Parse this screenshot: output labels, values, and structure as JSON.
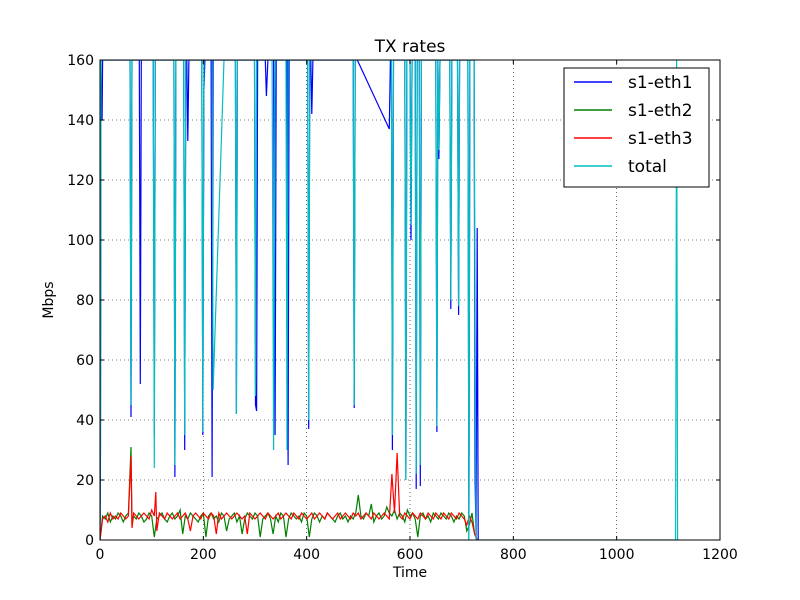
{
  "chart_data": {
    "type": "line",
    "title": "TX rates",
    "xlabel": "Time",
    "ylabel": "Mbps",
    "xlim": [
      0,
      1200
    ],
    "ylim": [
      0,
      160
    ],
    "xticks": [
      0,
      200,
      400,
      600,
      800,
      1000,
      1200
    ],
    "yticks": [
      0,
      20,
      40,
      60,
      80,
      100,
      120,
      140,
      160
    ],
    "grid": true,
    "legend_position": "top-right",
    "series": [
      {
        "name": "s1-eth1",
        "color": "#0000ff",
        "x": [
          0,
          1,
          2,
          3,
          4,
          5,
          6,
          8,
          10,
          58,
          60,
          62,
          64,
          74,
          76,
          78,
          80,
          103,
          105,
          107,
          110,
          113,
          143,
          145,
          147,
          150,
          152,
          160,
          162,
          164,
          166,
          168,
          170,
          172,
          197,
          199,
          201,
          203,
          205,
          207,
          215,
          217,
          219,
          222,
          225,
          240,
          242,
          244,
          246,
          260,
          262,
          264,
          266,
          268,
          272,
          274,
          276,
          278,
          280,
          297,
          299,
          301,
          303,
          305,
          310,
          312,
          314,
          316,
          320,
          322,
          325,
          327,
          330,
          333,
          336,
          339,
          341,
          343,
          345,
          347,
          360,
          362,
          364,
          366,
          378,
          380,
          383,
          386,
          389,
          402,
          404,
          406,
          408,
          410,
          412,
          490,
          492,
          494,
          496,
          498,
          560,
          562,
          564,
          566,
          568,
          570,
          572,
          574,
          576,
          590,
          592,
          594,
          596,
          598,
          600,
          602,
          604,
          606,
          608,
          610,
          612,
          614,
          616,
          618,
          620,
          622,
          624,
          626,
          628,
          630,
          650,
          652,
          654,
          656,
          658,
          675,
          677,
          679,
          681,
          683,
          690,
          692,
          694,
          696,
          698,
          700,
          702,
          704,
          712,
          714,
          716,
          718,
          720,
          722,
          724,
          726,
          728,
          730,
          732,
          733
        ],
        "y": [
          0,
          31,
          160,
          140,
          140,
          160,
          160,
          160,
          160,
          160,
          41,
          160,
          160,
          160,
          160,
          52,
          160,
          160,
          35,
          160,
          160,
          160,
          160,
          21,
          160,
          160,
          160,
          160,
          160,
          30,
          160,
          160,
          133,
          160,
          160,
          35,
          150,
          160,
          160,
          160,
          160,
          21,
          160,
          160,
          160,
          160,
          160,
          160,
          160,
          160,
          160,
          42,
          160,
          160,
          160,
          160,
          160,
          160,
          160,
          160,
          160,
          45,
          43,
          160,
          160,
          160,
          160,
          160,
          160,
          148,
          160,
          160,
          160,
          160,
          160,
          35,
          160,
          160,
          160,
          160,
          160,
          160,
          25,
          160,
          160,
          160,
          160,
          160,
          160,
          160,
          37,
          160,
          160,
          142,
          160,
          160,
          44,
          160,
          160,
          160,
          137,
          160,
          160,
          30,
          160,
          160,
          160,
          160,
          160,
          160,
          20,
          160,
          160,
          160,
          160,
          100,
          160,
          160,
          160,
          160,
          17,
          160,
          160,
          160,
          18,
          160,
          160,
          160,
          160,
          160,
          160,
          36,
          160,
          127,
          160,
          160,
          160,
          77,
          160,
          160,
          160,
          160,
          75,
          160,
          160,
          160,
          160,
          160,
          160,
          0,
          160,
          160,
          160,
          160,
          160,
          20,
          0,
          104,
          0,
          0
        ]
      },
      {
        "name": "s1-eth2",
        "color": "#008000",
        "x": [
          0,
          5,
          10,
          15,
          20,
          25,
          30,
          35,
          40,
          45,
          50,
          55,
          60,
          62,
          65,
          70,
          75,
          80,
          85,
          90,
          95,
          100,
          105,
          110,
          115,
          120,
          125,
          130,
          135,
          140,
          145,
          150,
          155,
          160,
          165,
          170,
          175,
          180,
          185,
          190,
          195,
          200,
          205,
          210,
          215,
          220,
          225,
          230,
          235,
          240,
          245,
          250,
          255,
          260,
          265,
          270,
          275,
          280,
          285,
          290,
          295,
          300,
          305,
          310,
          315,
          320,
          325,
          330,
          335,
          340,
          345,
          350,
          355,
          360,
          365,
          370,
          375,
          380,
          385,
          390,
          395,
          400,
          405,
          410,
          415,
          420,
          425,
          430,
          435,
          440,
          445,
          450,
          455,
          460,
          465,
          470,
          475,
          480,
          485,
          490,
          495,
          500,
          505,
          510,
          515,
          520,
          525,
          530,
          535,
          540,
          545,
          550,
          555,
          560,
          565,
          570,
          575,
          580,
          585,
          590,
          595,
          600,
          605,
          610,
          615,
          620,
          625,
          630,
          635,
          640,
          645,
          650,
          655,
          660,
          665,
          670,
          675,
          680,
          685,
          690,
          695,
          700,
          705,
          710,
          715,
          720,
          725,
          730
        ],
        "y": [
          0,
          8,
          7,
          9,
          6,
          8,
          7,
          9,
          8,
          6,
          8,
          9,
          31,
          5,
          8,
          7,
          9,
          8,
          6,
          7,
          9,
          8,
          1,
          7,
          8,
          9,
          7,
          6,
          8,
          9,
          7,
          8,
          10,
          2,
          8,
          7,
          9,
          8,
          7,
          6,
          8,
          9,
          1,
          8,
          9,
          7,
          8,
          6,
          9,
          8,
          3,
          7,
          8,
          9,
          6,
          8,
          2,
          7,
          9,
          8,
          7,
          9,
          8,
          1,
          7,
          8,
          9,
          7,
          2,
          8,
          6,
          9,
          8,
          1,
          7,
          9,
          8,
          7,
          8,
          6,
          9,
          8,
          1,
          7,
          9,
          8,
          6,
          8,
          7,
          9,
          8,
          7,
          6,
          8,
          9,
          7,
          8,
          6,
          8,
          7,
          9,
          15,
          8,
          7,
          9,
          8,
          12,
          6,
          8,
          9,
          7,
          8,
          11,
          9,
          8,
          10,
          7,
          9,
          8,
          6,
          10,
          8,
          9,
          7,
          1,
          8,
          9,
          7,
          8,
          6,
          9,
          8,
          7,
          9,
          8,
          7,
          9,
          8,
          6,
          8,
          7,
          9,
          8,
          3,
          5,
          9,
          2,
          0
        ]
      },
      {
        "name": "s1-eth3",
        "color": "#ff0000",
        "x": [
          0,
          5,
          10,
          15,
          20,
          25,
          30,
          35,
          40,
          45,
          50,
          55,
          60,
          62,
          65,
          70,
          75,
          80,
          85,
          90,
          95,
          100,
          105,
          108,
          110,
          115,
          120,
          125,
          130,
          135,
          140,
          145,
          150,
          155,
          160,
          165,
          170,
          175,
          180,
          185,
          190,
          195,
          200,
          205,
          210,
          215,
          220,
          225,
          230,
          235,
          240,
          245,
          250,
          255,
          260,
          265,
          270,
          275,
          280,
          285,
          290,
          295,
          300,
          305,
          310,
          315,
          320,
          325,
          330,
          335,
          340,
          345,
          350,
          355,
          360,
          365,
          370,
          375,
          380,
          385,
          390,
          395,
          400,
          405,
          410,
          415,
          420,
          425,
          430,
          435,
          440,
          445,
          450,
          455,
          460,
          465,
          470,
          475,
          480,
          485,
          490,
          495,
          500,
          505,
          510,
          515,
          520,
          525,
          530,
          535,
          540,
          545,
          550,
          555,
          560,
          565,
          570,
          575,
          580,
          585,
          590,
          595,
          600,
          605,
          610,
          615,
          620,
          625,
          630,
          635,
          640,
          645,
          650,
          655,
          660,
          665,
          670,
          675,
          680,
          685,
          690,
          695,
          700,
          705,
          710,
          715,
          720,
          725,
          730
        ],
        "y": [
          0,
          7,
          8,
          6,
          9,
          7,
          8,
          7,
          9,
          8,
          7,
          8,
          28,
          4,
          9,
          8,
          7,
          8,
          9,
          8,
          7,
          10,
          8,
          16,
          3,
          9,
          8,
          7,
          9,
          8,
          7,
          8,
          9,
          7,
          8,
          9,
          7,
          3,
          8,
          9,
          8,
          7,
          9,
          8,
          7,
          9,
          8,
          2,
          9,
          7,
          8,
          9,
          8,
          7,
          8,
          9,
          8,
          7,
          8,
          2,
          9,
          8,
          7,
          8,
          9,
          8,
          7,
          9,
          8,
          7,
          8,
          9,
          7,
          8,
          9,
          8,
          7,
          9,
          8,
          7,
          9,
          8,
          7,
          8,
          9,
          7,
          8,
          9,
          8,
          7,
          9,
          8,
          7,
          8,
          9,
          7,
          8,
          9,
          8,
          7,
          9,
          8,
          9,
          7,
          8,
          9,
          8,
          7,
          9,
          8,
          7,
          8,
          9,
          8,
          7,
          22,
          9,
          29,
          8,
          7,
          9,
          8,
          7,
          9,
          8,
          7,
          9,
          8,
          7,
          9,
          8,
          7,
          9,
          8,
          7,
          9,
          8,
          7,
          9,
          8,
          7,
          9,
          8,
          7,
          5,
          8,
          6,
          2,
          0
        ]
      },
      {
        "name": "total",
        "color": "#00bfbf",
        "x": [
          0,
          1,
          2,
          4,
          6,
          10,
          58,
          60,
          62,
          80,
          103,
          105,
          107,
          143,
          145,
          147,
          162,
          164,
          166,
          168,
          170,
          172,
          197,
          199,
          201,
          203,
          205,
          207,
          215,
          217,
          219,
          240,
          242,
          260,
          262,
          264,
          266,
          268,
          272,
          274,
          276,
          278,
          280,
          297,
          299,
          301,
          303,
          305,
          310,
          312,
          314,
          316,
          322,
          325,
          327,
          330,
          333,
          336,
          339,
          341,
          343,
          345,
          347,
          360,
          362,
          364,
          366,
          378,
          380,
          383,
          386,
          389,
          402,
          404,
          406,
          408,
          410,
          412,
          490,
          492,
          494,
          496,
          498,
          560,
          562,
          564,
          566,
          568,
          570,
          572,
          574,
          576,
          590,
          592,
          594,
          596,
          598,
          600,
          602,
          604,
          606,
          608,
          610,
          612,
          614,
          616,
          618,
          620,
          622,
          624,
          626,
          628,
          630,
          650,
          652,
          654,
          656,
          658,
          675,
          677,
          679,
          681,
          683,
          690,
          692,
          694,
          696,
          698,
          700,
          702,
          704,
          712,
          714,
          716,
          718,
          720,
          722,
          724,
          726,
          728,
          730,
          732,
          734,
          1112,
          1114,
          1116,
          1118
        ],
        "y": [
          0,
          50,
          160,
          160,
          160,
          160,
          160,
          45,
          160,
          160,
          160,
          24,
          160,
          160,
          25,
          160,
          160,
          35,
          160,
          160,
          160,
          160,
          160,
          36,
          160,
          160,
          160,
          160,
          160,
          160,
          50,
          160,
          160,
          160,
          160,
          42,
          160,
          160,
          160,
          160,
          160,
          160,
          160,
          160,
          160,
          48,
          160,
          160,
          160,
          160,
          160,
          160,
          160,
          160,
          160,
          160,
          160,
          30,
          160,
          160,
          160,
          160,
          160,
          160,
          30,
          160,
          160,
          160,
          160,
          160,
          160,
          160,
          160,
          40,
          160,
          160,
          160,
          160,
          160,
          45,
          160,
          160,
          160,
          160,
          160,
          160,
          35,
          160,
          160,
          160,
          160,
          160,
          160,
          20,
          160,
          160,
          160,
          160,
          105,
          160,
          160,
          160,
          160,
          22,
          160,
          160,
          160,
          25,
          160,
          160,
          160,
          160,
          160,
          160,
          38,
          160,
          130,
          160,
          160,
          160,
          80,
          160,
          160,
          160,
          160,
          78,
          160,
          160,
          160,
          160,
          160,
          160,
          0,
          160,
          160,
          160,
          160,
          160,
          70,
          0,
          0,
          0,
          0,
          0,
          0,
          160,
          0
        ]
      }
    ]
  }
}
